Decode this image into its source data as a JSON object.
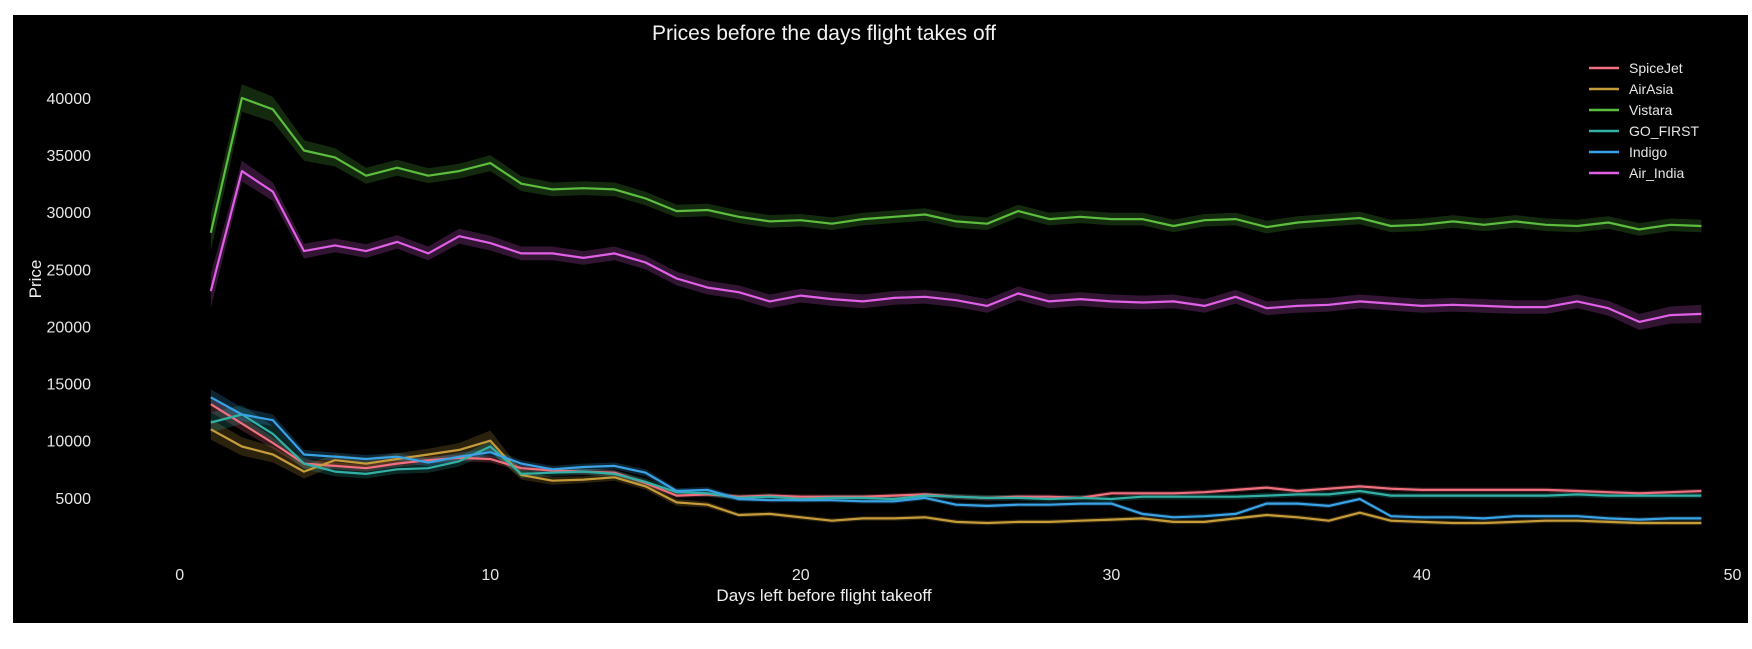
{
  "chart_data": {
    "type": "line",
    "title": "Prices before the days flight takes off",
    "xlabel": "Days left before flight takeoff",
    "ylabel": "Price",
    "xlim": [
      -4.5,
      50.5
    ],
    "ylim": [
      0,
      43500
    ],
    "x_ticks": [
      0,
      10,
      20,
      30,
      40,
      50
    ],
    "y_ticks": [
      5000,
      10000,
      15000,
      20000,
      25000,
      30000,
      35000,
      40000
    ],
    "grid": false,
    "legend_position": "top-right",
    "confidence_band": true,
    "x": [
      1,
      2,
      3,
      4,
      5,
      6,
      7,
      8,
      9,
      10,
      11,
      12,
      13,
      14,
      15,
      16,
      17,
      18,
      19,
      20,
      21,
      22,
      23,
      24,
      25,
      26,
      27,
      28,
      29,
      30,
      31,
      32,
      33,
      34,
      35,
      36,
      37,
      38,
      39,
      40,
      41,
      42,
      43,
      44,
      45,
      46,
      47,
      48,
      49
    ],
    "series": [
      {
        "name": "SpiceJet",
        "color": "#f0707f",
        "values": [
          13200,
          11500,
          9800,
          8000,
          7800,
          7600,
          8000,
          8300,
          8500,
          8400,
          7600,
          7400,
          7300,
          7200,
          6300,
          5200,
          5300,
          5100,
          5200,
          5100,
          5100,
          5100,
          5200,
          5300,
          5100,
          5000,
          5100,
          5100,
          5000,
          5400,
          5400,
          5400,
          5500,
          5700,
          5900,
          5600,
          5800,
          6000,
          5800,
          5700,
          5700,
          5700,
          5700,
          5700,
          5600,
          5500,
          5400,
          5500,
          5600
        ],
        "band": [
          700,
          600,
          500,
          400,
          300,
          300,
          300,
          300,
          300,
          300,
          250,
          250,
          250,
          250,
          250,
          200,
          200,
          200,
          200,
          200,
          200,
          200,
          200,
          200,
          200,
          200,
          200,
          200,
          200,
          200,
          200,
          200,
          200,
          200,
          200,
          200,
          200,
          200,
          200,
          200,
          200,
          200,
          200,
          200,
          200,
          200,
          200,
          200,
          200
        ]
      },
      {
        "name": "AirAsia",
        "color": "#c69b3a",
        "values": [
          11000,
          9500,
          8800,
          7300,
          8300,
          8000,
          8400,
          8800,
          9200,
          10000,
          7000,
          6500,
          6600,
          6800,
          6000,
          4600,
          4400,
          3500,
          3600,
          3300,
          3000,
          3200,
          3200,
          3300,
          2900,
          2800,
          2900,
          2900,
          3000,
          3100,
          3200,
          2900,
          2900,
          3200,
          3500,
          3300,
          3000,
          3700,
          3000,
          2900,
          2800,
          2800,
          2900,
          3000,
          3000,
          2900,
          2800,
          2800,
          2800
        ],
        "band": [
          900,
          800,
          700,
          600,
          500,
          500,
          500,
          500,
          600,
          900,
          400,
          350,
          300,
          300,
          300,
          300,
          250,
          200,
          200,
          200,
          200,
          200,
          200,
          200,
          200,
          200,
          200,
          200,
          200,
          200,
          200,
          200,
          200,
          200,
          200,
          200,
          200,
          200,
          200,
          200,
          200,
          200,
          200,
          200,
          200,
          200,
          200,
          200,
          200
        ]
      },
      {
        "name": "Vistara",
        "color": "#5cbd3e",
        "values": [
          28200,
          40000,
          39000,
          35400,
          34800,
          33200,
          33900,
          33200,
          33600,
          34300,
          32500,
          32000,
          32100,
          32000,
          31200,
          30100,
          30200,
          29600,
          29200,
          29300,
          29000,
          29400,
          29600,
          29800,
          29200,
          29000,
          30100,
          29400,
          29600,
          29400,
          29400,
          28800,
          29300,
          29400,
          28700,
          29100,
          29300,
          29500,
          28800,
          28900,
          29200,
          28900,
          29200,
          28900,
          28800,
          29100,
          28500,
          28900,
          28800
        ],
        "band": [
          1600,
          1200,
          1100,
          900,
          800,
          700,
          700,
          650,
          650,
          700,
          650,
          600,
          600,
          600,
          600,
          550,
          550,
          550,
          550,
          550,
          550,
          550,
          550,
          550,
          550,
          550,
          550,
          550,
          550,
          550,
          550,
          550,
          550,
          550,
          550,
          550,
          550,
          550,
          550,
          550,
          550,
          550,
          550,
          550,
          550,
          550,
          550,
          550,
          550
        ]
      },
      {
        "name": "GO_FIRST",
        "color": "#33b0a6",
        "values": [
          11600,
          12300,
          10600,
          8000,
          7300,
          7100,
          7500,
          7600,
          8200,
          9500,
          7100,
          7200,
          7300,
          7100,
          6400,
          5500,
          5400,
          5000,
          5100,
          4900,
          5000,
          5000,
          4900,
          5200,
          5100,
          5000,
          5000,
          4900,
          5000,
          4900,
          5100,
          5100,
          5100,
          5100,
          5200,
          5300,
          5300,
          5600,
          5200,
          5200,
          5200,
          5200,
          5200,
          5200,
          5300,
          5200,
          5200,
          5200,
          5200
        ],
        "band": [
          900,
          800,
          700,
          500,
          400,
          400,
          400,
          400,
          450,
          500,
          350,
          300,
          300,
          300,
          300,
          250,
          250,
          250,
          250,
          250,
          250,
          250,
          250,
          250,
          250,
          250,
          250,
          250,
          250,
          250,
          250,
          250,
          250,
          250,
          250,
          250,
          250,
          250,
          250,
          250,
          250,
          250,
          250,
          250,
          250,
          250,
          250,
          250,
          250
        ]
      },
      {
        "name": "Indigo",
        "color": "#3aa3e6",
        "values": [
          13800,
          12300,
          11800,
          8800,
          8600,
          8400,
          8600,
          8100,
          8600,
          9000,
          8000,
          7500,
          7700,
          7800,
          7200,
          5600,
          5700,
          4900,
          4800,
          4800,
          4800,
          4700,
          4700,
          5000,
          4400,
          4300,
          4400,
          4400,
          4500,
          4500,
          3600,
          3300,
          3400,
          3600,
          4500,
          4500,
          4300,
          4900,
          3400,
          3300,
          3300,
          3200,
          3400,
          3400,
          3400,
          3200,
          3100,
          3200,
          3200
        ],
        "band": [
          700,
          600,
          500,
          400,
          350,
          350,
          350,
          350,
          350,
          350,
          300,
          300,
          300,
          300,
          300,
          250,
          250,
          200,
          200,
          200,
          200,
          200,
          200,
          200,
          200,
          200,
          200,
          200,
          200,
          200,
          200,
          200,
          200,
          200,
          200,
          200,
          200,
          200,
          200,
          200,
          200,
          200,
          200,
          200,
          200,
          200,
          200,
          200,
          200
        ]
      },
      {
        "name": "Air_India",
        "color": "#e060e6",
        "values": [
          23100,
          33600,
          31800,
          26600,
          27100,
          26600,
          27400,
          26400,
          27900,
          27300,
          26400,
          26400,
          26000,
          26400,
          25600,
          24200,
          23400,
          23000,
          22200,
          22700,
          22400,
          22200,
          22500,
          22600,
          22300,
          21800,
          22900,
          22200,
          22400,
          22200,
          22100,
          22200,
          21800,
          22600,
          21600,
          21800,
          21900,
          22200,
          22000,
          21800,
          21900,
          21800,
          21700,
          21700,
          22200,
          21600,
          20400,
          21000,
          21100
        ],
        "band": [
          1500,
          900,
          800,
          650,
          600,
          600,
          600,
          600,
          650,
          650,
          600,
          600,
          600,
          600,
          600,
          600,
          600,
          600,
          600,
          600,
          600,
          600,
          600,
          600,
          600,
          600,
          600,
          600,
          600,
          600,
          600,
          600,
          600,
          600,
          600,
          600,
          600,
          600,
          600,
          600,
          600,
          600,
          600,
          600,
          600,
          650,
          700,
          750,
          800
        ]
      }
    ]
  }
}
